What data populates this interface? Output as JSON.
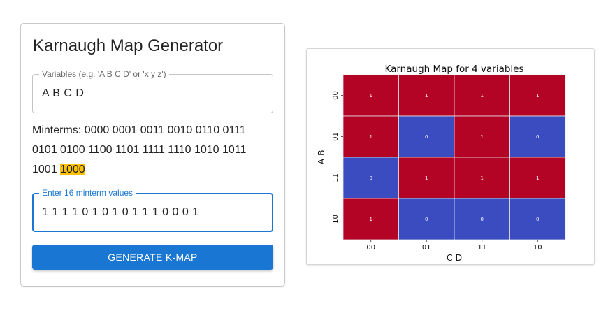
{
  "form": {
    "title": "Karnaugh Map Generator",
    "variables_label": "Variables (e.g. 'A B C D' or 'x y z')",
    "variables_value": "A B C D",
    "minterms_prefix": "Minterms:",
    "minterms": [
      "0000",
      "0001",
      "0011",
      "0010",
      "0110",
      "0111",
      "0101",
      "0100",
      "1100",
      "1101",
      "1111",
      "1110",
      "1010",
      "1011",
      "1001",
      "1000"
    ],
    "highlighted_minterm_index": 15,
    "minterm_input_label": "Enter 16 minterm values",
    "minterm_input_value": "1 1 1 1 0 1 0 1 0 1 1 1 0 0 0 1",
    "generate_label": "GENERATE K-MAP",
    "focus_color": "#1976d2",
    "highlight_color": "#ffc107"
  },
  "chart_data": {
    "type": "heatmap",
    "title": "Karnaugh Map for 4 variables",
    "xlabel": "C D",
    "ylabel": "A B",
    "x_categories": [
      "00",
      "01",
      "11",
      "10"
    ],
    "y_categories": [
      "00",
      "01",
      "11",
      "10"
    ],
    "values": [
      [
        1,
        1,
        1,
        1
      ],
      [
        1,
        0,
        1,
        0
      ],
      [
        0,
        1,
        1,
        1
      ],
      [
        1,
        0,
        0,
        0
      ]
    ],
    "colors": {
      "1": "#b40426",
      "0": "#3b4cc0"
    },
    "grid": true,
    "legend": "none"
  }
}
